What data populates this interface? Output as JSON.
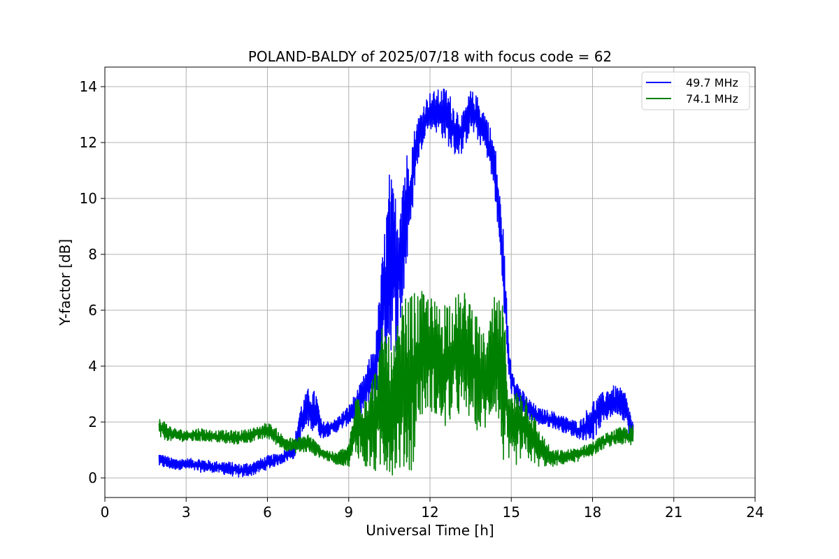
{
  "chart_data": {
    "type": "line",
    "title": "POLAND-BALDY of 2025/07/18 with focus code = 62",
    "xlabel": "Universal Time [h]",
    "ylabel": "Y-factor [dB]",
    "xlim": [
      0,
      24
    ],
    "ylim": [
      -0.7,
      14.7
    ],
    "xticks": [
      0,
      3,
      6,
      9,
      12,
      15,
      18,
      21,
      24
    ],
    "yticks": [
      0,
      2,
      4,
      6,
      8,
      10,
      12,
      14
    ],
    "grid": true,
    "legend_position": "top-right",
    "series": [
      {
        "name": "49.7 MHz",
        "color": "#0000ff",
        "x": [
          2.0,
          2.5,
          3.0,
          3.5,
          4.0,
          4.5,
          5.0,
          5.5,
          6.0,
          6.5,
          7.0,
          7.2,
          7.5,
          7.8,
          8.0,
          8.5,
          9.0,
          9.5,
          10.0,
          10.2,
          10.5,
          10.8,
          11.0,
          11.3,
          11.5,
          11.8,
          12.0,
          12.3,
          12.6,
          12.9,
          13.2,
          13.5,
          13.8,
          14.1,
          14.4,
          14.7,
          14.9,
          15.0,
          15.2,
          15.5,
          15.8,
          16.0,
          16.5,
          17.0,
          17.5,
          18.0,
          18.3,
          18.6,
          18.9,
          19.2,
          19.5
        ],
        "upper": [
          0.9,
          0.7,
          0.7,
          0.7,
          0.6,
          0.6,
          0.5,
          0.6,
          0.8,
          0.9,
          1.4,
          2.6,
          3.2,
          3.1,
          2.0,
          2.1,
          2.6,
          3.5,
          5.0,
          7.5,
          11.0,
          10.0,
          11.5,
          12.0,
          12.8,
          13.5,
          13.8,
          13.9,
          14.0,
          13.4,
          13.0,
          13.9,
          13.6,
          13.0,
          12.0,
          9.0,
          5.0,
          4.2,
          3.5,
          3.0,
          2.7,
          2.5,
          2.4,
          2.2,
          2.0,
          2.8,
          3.0,
          3.3,
          3.3,
          3.1,
          2.0
        ],
        "lower": [
          0.4,
          0.3,
          0.3,
          0.2,
          0.2,
          0.1,
          0.0,
          0.1,
          0.3,
          0.5,
          0.7,
          1.2,
          1.8,
          1.6,
          1.4,
          1.6,
          1.9,
          2.3,
          2.9,
          4.0,
          4.5,
          4.5,
          6.0,
          9.0,
          11.0,
          12.2,
          12.5,
          12.3,
          12.0,
          11.5,
          11.6,
          12.4,
          12.0,
          11.5,
          10.0,
          6.5,
          3.5,
          3.0,
          2.6,
          2.2,
          2.0,
          1.9,
          1.8,
          1.6,
          1.4,
          1.3,
          1.8,
          2.1,
          2.3,
          2.0,
          1.1
        ]
      },
      {
        "name": "74.1 MHz",
        "color": "#008000",
        "x": [
          2.0,
          2.5,
          3.0,
          3.5,
          4.0,
          4.5,
          5.0,
          5.5,
          6.0,
          6.3,
          6.6,
          7.0,
          7.5,
          8.0,
          8.5,
          9.0,
          9.3,
          9.6,
          10.0,
          10.3,
          10.6,
          11.0,
          11.3,
          11.6,
          12.0,
          12.3,
          12.6,
          12.9,
          13.2,
          13.5,
          13.8,
          14.1,
          14.4,
          14.7,
          15.0,
          15.3,
          15.6,
          16.0,
          16.5,
          17.0,
          17.5,
          18.0,
          18.5,
          19.0,
          19.5
        ],
        "upper": [
          2.2,
          1.8,
          1.7,
          1.8,
          1.7,
          1.7,
          1.7,
          1.8,
          2.0,
          1.8,
          1.5,
          1.4,
          1.6,
          1.1,
          0.9,
          1.2,
          3.2,
          3.3,
          4.0,
          5.8,
          4.5,
          6.4,
          6.6,
          6.7,
          6.6,
          6.2,
          6.6,
          6.5,
          6.7,
          6.6,
          5.5,
          5.0,
          6.6,
          6.2,
          3.0,
          3.3,
          3.0,
          1.8,
          1.0,
          1.0,
          1.1,
          1.3,
          1.6,
          1.8,
          1.9
        ],
        "lower": [
          1.4,
          1.3,
          1.3,
          1.3,
          1.3,
          1.2,
          1.2,
          1.3,
          1.4,
          1.2,
          1.0,
          0.9,
          0.9,
          0.7,
          0.5,
          0.4,
          0.8,
          0.3,
          0.1,
          0.2,
          0.1,
          0.3,
          0.0,
          2.0,
          2.5,
          1.8,
          1.7,
          2.3,
          2.0,
          2.1,
          1.6,
          1.7,
          2.5,
          0.5,
          0.2,
          0.6,
          0.6,
          0.4,
          0.4,
          0.5,
          0.6,
          0.8,
          1.1,
          1.2,
          1.1
        ]
      }
    ]
  }
}
